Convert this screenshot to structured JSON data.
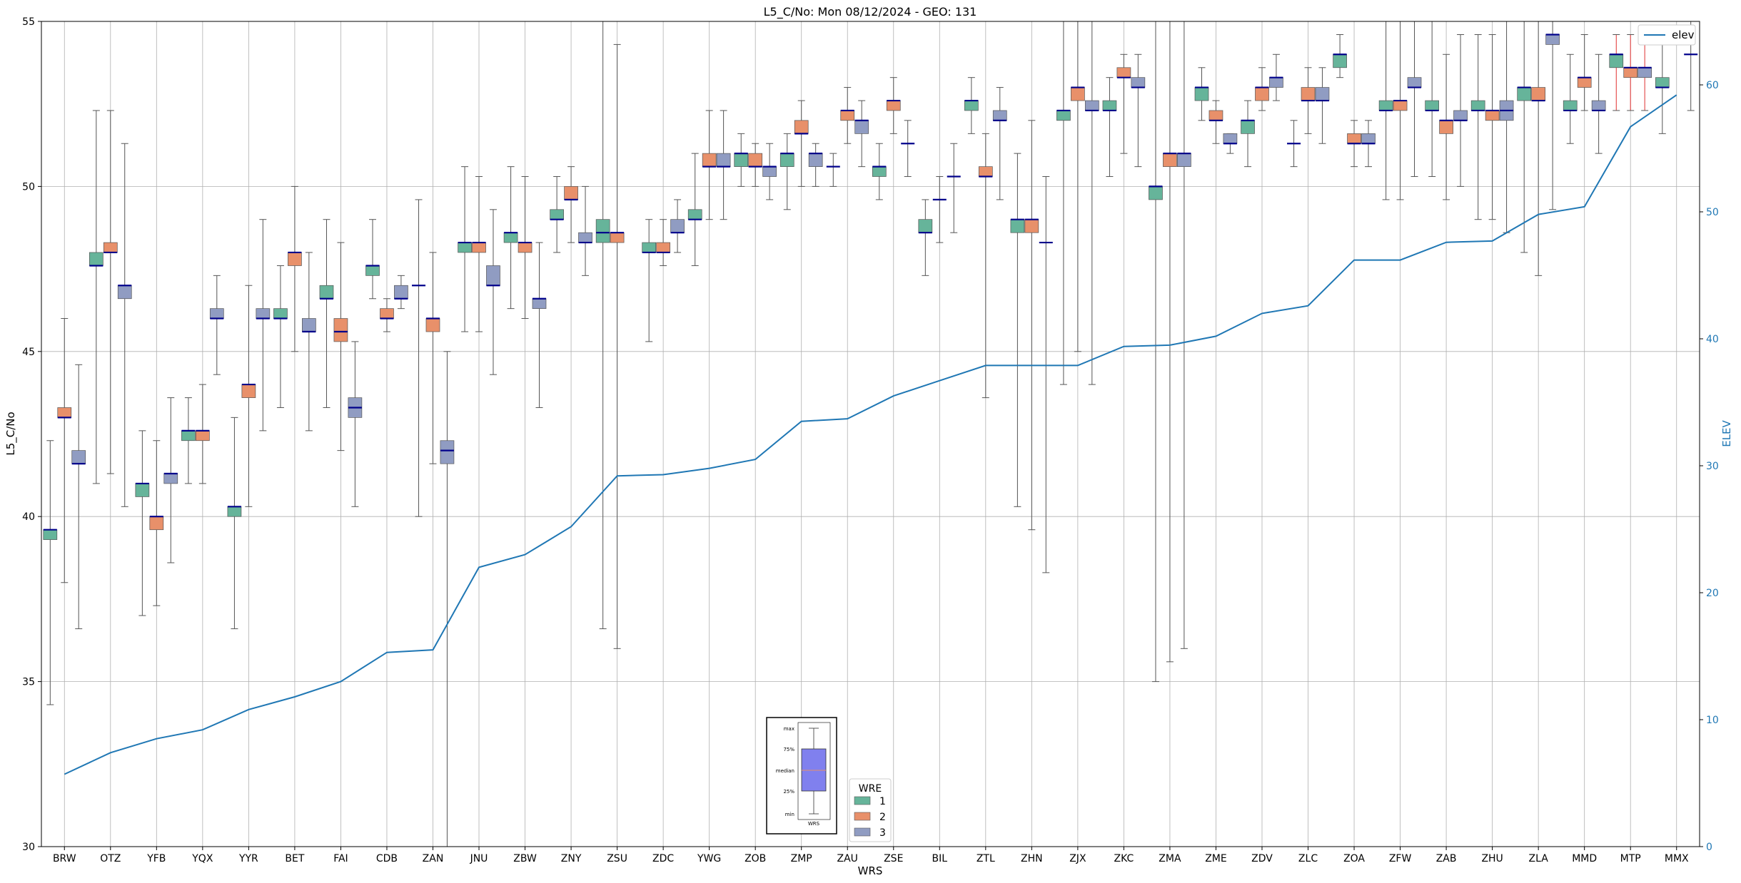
{
  "chart_data": {
    "type": "box",
    "title": "L5_C/No: Mon 08/12/2024 - GEO: 131",
    "xlabel": "WRS",
    "ylabel": "L5_C/No",
    "y2label": "ELEV",
    "ylim": [
      30,
      55
    ],
    "y2lim": [
      0,
      65
    ],
    "yticks": [
      30,
      35,
      40,
      45,
      50,
      55
    ],
    "y2ticks": [
      0,
      10,
      20,
      30,
      40,
      50,
      60
    ],
    "grid": true,
    "wre_legend": {
      "title": "WRE",
      "entries": [
        {
          "label": "1",
          "color": "#66b49a"
        },
        {
          "label": "2",
          "color": "#e8906a"
        },
        {
          "label": "3",
          "color": "#909cc2"
        }
      ],
      "placement": "bottom-center"
    },
    "line_legend": {
      "label": "elev",
      "color": "#1f77b4",
      "placement": "top-right"
    },
    "box_key": {
      "labels": [
        "max",
        "75%",
        "median",
        "25%",
        "min"
      ],
      "xlabel": "WRS"
    },
    "categories": [
      "BRW",
      "OTZ",
      "YFB",
      "YQX",
      "YYR",
      "BET",
      "FAI",
      "CDB",
      "ZAN",
      "JNU",
      "ZBW",
      "ZNY",
      "ZSU",
      "ZDC",
      "YWG",
      "ZOB",
      "ZMP",
      "ZAU",
      "ZSE",
      "BIL",
      "ZTL",
      "ZHN",
      "ZJX",
      "ZKC",
      "ZMA",
      "ZME",
      "ZDV",
      "ZLC",
      "ZOA",
      "ZFW",
      "ZAB",
      "ZHU",
      "ZLA",
      "MMD",
      "MTP",
      "MMX"
    ],
    "elev": [
      5.7,
      7.4,
      8.5,
      9.2,
      10.8,
      11.8,
      13.0,
      15.3,
      15.5,
      22.0,
      23.0,
      25.2,
      29.2,
      29.3,
      29.8,
      30.5,
      33.5,
      33.7,
      35.5,
      36.7,
      37.9,
      37.9,
      37.9,
      39.4,
      39.5,
      40.2,
      42.0,
      42.6,
      46.2,
      46.2,
      47.6,
      47.7,
      49.8,
      50.4,
      56.7,
      59.2
    ],
    "boxes": [
      {
        "wrs": "BRW",
        "wre": 1,
        "min": 34.3,
        "q1": 39.3,
        "median": 39.6,
        "q3": 39.6,
        "max": 42.3
      },
      {
        "wrs": "BRW",
        "wre": 2,
        "min": 38.0,
        "q1": 43.0,
        "median": 43.0,
        "q3": 43.3,
        "max": 46.0
      },
      {
        "wrs": "BRW",
        "wre": 3,
        "min": 36.6,
        "q1": 41.6,
        "median": 41.6,
        "q3": 42.0,
        "max": 44.6
      },
      {
        "wrs": "OTZ",
        "wre": 1,
        "min": 41.0,
        "q1": 47.6,
        "median": 47.6,
        "q3": 48.0,
        "max": 52.3
      },
      {
        "wrs": "OTZ",
        "wre": 2,
        "min": 41.3,
        "q1": 48.0,
        "median": 48.0,
        "q3": 48.3,
        "max": 52.3
      },
      {
        "wrs": "OTZ",
        "wre": 3,
        "min": 40.3,
        "q1": 46.6,
        "median": 47.0,
        "q3": 47.0,
        "max": 51.3
      },
      {
        "wrs": "YFB",
        "wre": 1,
        "min": 37.0,
        "q1": 40.6,
        "median": 41.0,
        "q3": 41.0,
        "max": 42.6
      },
      {
        "wrs": "YFB",
        "wre": 2,
        "min": 37.3,
        "q1": 39.6,
        "median": 40.0,
        "q3": 40.0,
        "max": 42.3
      },
      {
        "wrs": "YFB",
        "wre": 3,
        "min": 38.6,
        "q1": 41.0,
        "median": 41.3,
        "q3": 41.3,
        "max": 43.6
      },
      {
        "wrs": "YQX",
        "wre": 1,
        "min": 41.0,
        "q1": 42.3,
        "median": 42.6,
        "q3": 42.6,
        "max": 43.6
      },
      {
        "wrs": "YQX",
        "wre": 2,
        "min": 41.0,
        "q1": 42.3,
        "median": 42.6,
        "q3": 42.6,
        "max": 44.0
      },
      {
        "wrs": "YQX",
        "wre": 3,
        "min": 44.3,
        "q1": 46.0,
        "median": 46.0,
        "q3": 46.3,
        "max": 47.3
      },
      {
        "wrs": "YYR",
        "wre": 1,
        "min": 36.6,
        "q1": 40.0,
        "median": 40.3,
        "q3": 40.3,
        "max": 43.0
      },
      {
        "wrs": "YYR",
        "wre": 2,
        "min": 40.3,
        "q1": 43.6,
        "median": 44.0,
        "q3": 44.0,
        "max": 47.0
      },
      {
        "wrs": "YYR",
        "wre": 3,
        "min": 42.6,
        "q1": 46.0,
        "median": 46.0,
        "q3": 46.3,
        "max": 49.0
      },
      {
        "wrs": "BET",
        "wre": 1,
        "min": 43.3,
        "q1": 46.0,
        "median": 46.0,
        "q3": 46.3,
        "max": 47.6
      },
      {
        "wrs": "BET",
        "wre": 2,
        "min": 45.0,
        "q1": 47.6,
        "median": 48.0,
        "q3": 48.0,
        "max": 50.0
      },
      {
        "wrs": "BET",
        "wre": 3,
        "min": 42.6,
        "q1": 45.6,
        "median": 45.6,
        "q3": 46.0,
        "max": 48.0
      },
      {
        "wrs": "FAI",
        "wre": 1,
        "min": 43.3,
        "q1": 46.6,
        "median": 46.6,
        "q3": 47.0,
        "max": 49.0
      },
      {
        "wrs": "FAI",
        "wre": 2,
        "min": 42.0,
        "q1": 45.3,
        "median": 45.6,
        "q3": 46.0,
        "max": 48.3
      },
      {
        "wrs": "FAI",
        "wre": 3,
        "min": 40.3,
        "q1": 43.0,
        "median": 43.3,
        "q3": 43.6,
        "max": 45.3
      },
      {
        "wrs": "CDB",
        "wre": 1,
        "min": 46.6,
        "q1": 47.3,
        "median": 47.6,
        "q3": 47.6,
        "max": 49.0
      },
      {
        "wrs": "CDB",
        "wre": 2,
        "min": 45.6,
        "q1": 46.0,
        "median": 46.0,
        "q3": 46.3,
        "max": 46.6
      },
      {
        "wrs": "CDB",
        "wre": 3,
        "min": 46.3,
        "q1": 46.6,
        "median": 46.6,
        "q3": 47.0,
        "max": 47.3
      },
      {
        "wrs": "ZAN",
        "wre": 1,
        "min": 40.0,
        "q1": 47.0,
        "median": 47.0,
        "q3": 47.0,
        "max": 49.6
      },
      {
        "wrs": "ZAN",
        "wre": 2,
        "min": 41.6,
        "q1": 45.6,
        "median": 46.0,
        "q3": 46.0,
        "max": 48.0
      },
      {
        "wrs": "ZAN",
        "wre": 3,
        "min": 30.0,
        "q1": 41.6,
        "median": 42.0,
        "q3": 42.3,
        "max": 45.0
      },
      {
        "wrs": "JNU",
        "wre": 1,
        "min": 45.6,
        "q1": 48.0,
        "median": 48.3,
        "q3": 48.3,
        "max": 50.6
      },
      {
        "wrs": "JNU",
        "wre": 2,
        "min": 45.6,
        "q1": 48.0,
        "median": 48.3,
        "q3": 48.3,
        "max": 50.3
      },
      {
        "wrs": "JNU",
        "wre": 3,
        "min": 44.3,
        "q1": 47.0,
        "median": 47.0,
        "q3": 47.6,
        "max": 49.3
      },
      {
        "wrs": "ZBW",
        "wre": 1,
        "min": 46.3,
        "q1": 48.3,
        "median": 48.6,
        "q3": 48.6,
        "max": 50.6
      },
      {
        "wrs": "ZBW",
        "wre": 2,
        "min": 46.0,
        "q1": 48.0,
        "median": 48.3,
        "q3": 48.3,
        "max": 50.3
      },
      {
        "wrs": "ZBW",
        "wre": 3,
        "min": 43.3,
        "q1": 46.3,
        "median": 46.6,
        "q3": 46.6,
        "max": 48.3
      },
      {
        "wrs": "ZNY",
        "wre": 1,
        "min": 48.0,
        "q1": 49.0,
        "median": 49.0,
        "q3": 49.3,
        "max": 50.3
      },
      {
        "wrs": "ZNY",
        "wre": 2,
        "min": 48.3,
        "q1": 49.6,
        "median": 49.6,
        "q3": 50.0,
        "max": 50.6
      },
      {
        "wrs": "ZNY",
        "wre": 3,
        "min": 47.3,
        "q1": 48.3,
        "median": 48.3,
        "q3": 48.6,
        "max": 50.0
      },
      {
        "wrs": "ZSU",
        "wre": 1,
        "min": 36.6,
        "q1": 48.3,
        "median": 48.6,
        "q3": 49.0,
        "max": 55.0
      },
      {
        "wrs": "ZSU",
        "wre": 2,
        "min": 36.0,
        "q1": 48.3,
        "median": 48.6,
        "q3": 48.6,
        "max": 54.3
      },
      {
        "wrs": "ZDC",
        "wre": 1,
        "min": 45.3,
        "q1": 48.0,
        "median": 48.0,
        "q3": 48.3,
        "max": 49.0
      },
      {
        "wrs": "ZDC",
        "wre": 2,
        "min": 47.6,
        "q1": 48.0,
        "median": 48.0,
        "q3": 48.3,
        "max": 49.0
      },
      {
        "wrs": "ZDC",
        "wre": 3,
        "min": 48.0,
        "q1": 48.6,
        "median": 48.6,
        "q3": 49.0,
        "max": 49.6
      },
      {
        "wrs": "YWG",
        "wre": 1,
        "min": 47.6,
        "q1": 49.0,
        "median": 49.0,
        "q3": 49.3,
        "max": 51.0
      },
      {
        "wrs": "YWG",
        "wre": 2,
        "min": 49.0,
        "q1": 50.6,
        "median": 50.6,
        "q3": 51.0,
        "max": 52.3
      },
      {
        "wrs": "YWG",
        "wre": 3,
        "min": 49.0,
        "q1": 50.6,
        "median": 50.6,
        "q3": 51.0,
        "max": 52.3
      },
      {
        "wrs": "ZOB",
        "wre": 1,
        "min": 50.0,
        "q1": 50.6,
        "median": 51.0,
        "q3": 51.0,
        "max": 51.6
      },
      {
        "wrs": "ZOB",
        "wre": 2,
        "min": 50.0,
        "q1": 50.6,
        "median": 50.6,
        "q3": 51.0,
        "max": 51.3
      },
      {
        "wrs": "ZOB",
        "wre": 3,
        "min": 49.6,
        "q1": 50.3,
        "median": 50.6,
        "q3": 50.6,
        "max": 51.3
      },
      {
        "wrs": "ZMP",
        "wre": 1,
        "min": 49.3,
        "q1": 50.6,
        "median": 51.0,
        "q3": 51.0,
        "max": 51.6
      },
      {
        "wrs": "ZMP",
        "wre": 2,
        "min": 50.0,
        "q1": 51.6,
        "median": 51.6,
        "q3": 52.0,
        "max": 52.6
      },
      {
        "wrs": "ZMP",
        "wre": 3,
        "min": 50.0,
        "q1": 50.6,
        "median": 51.0,
        "q3": 51.0,
        "max": 51.3
      },
      {
        "wrs": "ZAU",
        "wre": 1,
        "min": 50.0,
        "q1": 50.6,
        "median": 50.6,
        "q3": 50.6,
        "max": 51.0
      },
      {
        "wrs": "ZAU",
        "wre": 2,
        "min": 51.3,
        "q1": 52.0,
        "median": 52.3,
        "q3": 52.3,
        "max": 53.0
      },
      {
        "wrs": "ZAU",
        "wre": 3,
        "min": 50.6,
        "q1": 51.6,
        "median": 52.0,
        "q3": 52.0,
        "max": 52.6
      },
      {
        "wrs": "ZSE",
        "wre": 1,
        "min": 49.6,
        "q1": 50.3,
        "median": 50.6,
        "q3": 50.6,
        "max": 51.3
      },
      {
        "wrs": "ZSE",
        "wre": 2,
        "min": 51.6,
        "q1": 52.3,
        "median": 52.6,
        "q3": 52.6,
        "max": 53.3
      },
      {
        "wrs": "ZSE",
        "wre": 3,
        "min": 50.3,
        "q1": 51.3,
        "median": 51.3,
        "q3": 51.3,
        "max": 52.0
      },
      {
        "wrs": "BIL",
        "wre": 1,
        "min": 47.3,
        "q1": 48.6,
        "median": 48.6,
        "q3": 49.0,
        "max": 49.6
      },
      {
        "wrs": "BIL",
        "wre": 2,
        "min": 48.3,
        "q1": 49.6,
        "median": 49.6,
        "q3": 49.6,
        "max": 50.3
      },
      {
        "wrs": "BIL",
        "wre": 3,
        "min": 48.6,
        "q1": 50.3,
        "median": 50.3,
        "q3": 50.3,
        "max": 51.3
      },
      {
        "wrs": "ZTL",
        "wre": 1,
        "min": 51.6,
        "q1": 52.3,
        "median": 52.6,
        "q3": 52.6,
        "max": 53.3
      },
      {
        "wrs": "ZTL",
        "wre": 2,
        "min": 43.6,
        "q1": 50.3,
        "median": 50.3,
        "q3": 50.6,
        "max": 51.6
      },
      {
        "wrs": "ZTL",
        "wre": 3,
        "min": 49.6,
        "q1": 52.0,
        "median": 52.0,
        "q3": 52.3,
        "max": 53.0
      },
      {
        "wrs": "ZHN",
        "wre": 1,
        "min": 40.3,
        "q1": 48.6,
        "median": 49.0,
        "q3": 49.0,
        "max": 51.0
      },
      {
        "wrs": "ZHN",
        "wre": 2,
        "min": 39.6,
        "q1": 48.6,
        "median": 49.0,
        "q3": 49.0,
        "max": 52.0
      },
      {
        "wrs": "ZHN",
        "wre": 3,
        "min": 38.3,
        "q1": 48.3,
        "median": 48.3,
        "q3": 48.3,
        "max": 50.3
      },
      {
        "wrs": "ZJX",
        "wre": 1,
        "min": 44.0,
        "q1": 52.0,
        "median": 52.3,
        "q3": 52.3,
        "max": 55.0
      },
      {
        "wrs": "ZJX",
        "wre": 2,
        "min": 45.0,
        "q1": 52.6,
        "median": 53.0,
        "q3": 53.0,
        "max": 55.0
      },
      {
        "wrs": "ZJX",
        "wre": 3,
        "min": 44.0,
        "q1": 52.3,
        "median": 52.3,
        "q3": 52.6,
        "max": 55.0
      },
      {
        "wrs": "ZKC",
        "wre": 1,
        "min": 50.3,
        "q1": 52.3,
        "median": 52.3,
        "q3": 52.6,
        "max": 53.3
      },
      {
        "wrs": "ZKC",
        "wre": 2,
        "min": 51.0,
        "q1": 53.3,
        "median": 53.3,
        "q3": 53.6,
        "max": 54.0
      },
      {
        "wrs": "ZKC",
        "wre": 3,
        "min": 50.6,
        "q1": 53.0,
        "median": 53.0,
        "q3": 53.3,
        "max": 54.0
      },
      {
        "wrs": "ZMA",
        "wre": 1,
        "min": 35.0,
        "q1": 49.6,
        "median": 50.0,
        "q3": 50.0,
        "max": 55.0
      },
      {
        "wrs": "ZMA",
        "wre": 2,
        "min": 35.6,
        "q1": 50.6,
        "median": 51.0,
        "q3": 51.0,
        "max": 55.0
      },
      {
        "wrs": "ZMA",
        "wre": 3,
        "min": 36.0,
        "q1": 50.6,
        "median": 51.0,
        "q3": 51.0,
        "max": 55.0
      },
      {
        "wrs": "ZME",
        "wre": 1,
        "min": 52.0,
        "q1": 52.6,
        "median": 53.0,
        "q3": 53.0,
        "max": 53.6
      },
      {
        "wrs": "ZME",
        "wre": 2,
        "min": 51.3,
        "q1": 52.0,
        "median": 52.0,
        "q3": 52.3,
        "max": 52.6
      },
      {
        "wrs": "ZME",
        "wre": 3,
        "min": 51.0,
        "q1": 51.3,
        "median": 51.3,
        "q3": 51.6,
        "max": 51.6
      },
      {
        "wrs": "ZDV",
        "wre": 1,
        "min": 50.6,
        "q1": 51.6,
        "median": 52.0,
        "q3": 52.0,
        "max": 52.6
      },
      {
        "wrs": "ZDV",
        "wre": 2,
        "min": 52.3,
        "q1": 52.6,
        "median": 53.0,
        "q3": 53.0,
        "max": 53.6
      },
      {
        "wrs": "ZDV",
        "wre": 3,
        "min": 52.6,
        "q1": 53.0,
        "median": 53.3,
        "q3": 53.3,
        "max": 54.0
      },
      {
        "wrs": "ZLC",
        "wre": 1,
        "min": 50.6,
        "q1": 51.3,
        "median": 51.3,
        "q3": 51.3,
        "max": 52.0
      },
      {
        "wrs": "ZLC",
        "wre": 2,
        "min": 51.6,
        "q1": 52.6,
        "median": 52.6,
        "q3": 53.0,
        "max": 53.6
      },
      {
        "wrs": "ZLC",
        "wre": 3,
        "min": 51.3,
        "q1": 52.6,
        "median": 52.6,
        "q3": 53.0,
        "max": 53.6
      },
      {
        "wrs": "ZOA",
        "wre": 1,
        "min": 53.3,
        "q1": 53.6,
        "median": 54.0,
        "q3": 54.0,
        "max": 54.6
      },
      {
        "wrs": "ZOA",
        "wre": 2,
        "min": 50.6,
        "q1": 51.3,
        "median": 51.3,
        "q3": 51.6,
        "max": 52.0
      },
      {
        "wrs": "ZOA",
        "wre": 3,
        "min": 50.6,
        "q1": 51.3,
        "median": 51.3,
        "q3": 51.6,
        "max": 52.0
      },
      {
        "wrs": "ZFW",
        "wre": 1,
        "min": 49.6,
        "q1": 52.3,
        "median": 52.3,
        "q3": 52.6,
        "max": 55.0
      },
      {
        "wrs": "ZFW",
        "wre": 2,
        "min": 49.6,
        "q1": 52.3,
        "median": 52.6,
        "q3": 52.6,
        "max": 55.0
      },
      {
        "wrs": "ZFW",
        "wre": 3,
        "min": 50.3,
        "q1": 53.0,
        "median": 53.0,
        "q3": 53.3,
        "max": 55.0
      },
      {
        "wrs": "ZAB",
        "wre": 1,
        "min": 50.3,
        "q1": 52.3,
        "median": 52.3,
        "q3": 52.6,
        "max": 55.0
      },
      {
        "wrs": "ZAB",
        "wre": 2,
        "min": 49.6,
        "q1": 51.6,
        "median": 52.0,
        "q3": 52.0,
        "max": 54.0
      },
      {
        "wrs": "ZAB",
        "wre": 3,
        "min": 50.0,
        "q1": 52.0,
        "median": 52.0,
        "q3": 52.3,
        "max": 54.6
      },
      {
        "wrs": "ZHU",
        "wre": 1,
        "min": 49.0,
        "q1": 52.3,
        "median": 52.3,
        "q3": 52.6,
        "max": 54.6
      },
      {
        "wrs": "ZHU",
        "wre": 2,
        "min": 49.0,
        "q1": 52.0,
        "median": 52.3,
        "q3": 52.3,
        "max": 54.6
      },
      {
        "wrs": "ZHU",
        "wre": 3,
        "min": 48.6,
        "q1": 52.0,
        "median": 52.3,
        "q3": 52.6,
        "max": 55.0
      },
      {
        "wrs": "ZLA",
        "wre": 1,
        "min": 48.0,
        "q1": 52.6,
        "median": 53.0,
        "q3": 53.0,
        "max": 55.0
      },
      {
        "wrs": "ZLA",
        "wre": 2,
        "min": 47.3,
        "q1": 52.6,
        "median": 52.6,
        "q3": 53.0,
        "max": 55.0
      },
      {
        "wrs": "ZLA",
        "wre": 3,
        "min": 49.3,
        "q1": 54.3,
        "median": 54.6,
        "q3": 54.6,
        "max": 55.0
      },
      {
        "wrs": "MMD",
        "wre": 1,
        "min": 51.3,
        "q1": 52.3,
        "median": 52.3,
        "q3": 52.6,
        "max": 54.0
      },
      {
        "wrs": "MMD",
        "wre": 2,
        "min": 52.3,
        "q1": 53.0,
        "median": 53.3,
        "q3": 53.3,
        "max": 54.6
      },
      {
        "wrs": "MMD",
        "wre": 3,
        "min": 51.0,
        "q1": 52.3,
        "median": 52.3,
        "q3": 52.6,
        "max": 54.0
      },
      {
        "wrs": "MTP",
        "wre": 1,
        "min": 52.3,
        "q1": 53.6,
        "median": 54.0,
        "q3": 54.0,
        "max": 54.6,
        "outlier": true
      },
      {
        "wrs": "MTP",
        "wre": 2,
        "min": 52.3,
        "q1": 53.3,
        "median": 53.6,
        "q3": 53.6,
        "max": 54.6,
        "outlier": true
      },
      {
        "wrs": "MTP",
        "wre": 3,
        "min": 52.3,
        "q1": 53.3,
        "median": 53.6,
        "q3": 53.6,
        "max": 54.3,
        "outlier": true
      },
      {
        "wrs": "MMX",
        "wre": 1,
        "min": 51.6,
        "q1": 53.0,
        "median": 53.0,
        "q3": 53.3,
        "max": 54.3
      },
      {
        "wrs": "MMX",
        "wre": 3,
        "min": 52.3,
        "q1": 54.0,
        "median": 54.0,
        "q3": 54.0,
        "max": 55.0
      }
    ]
  }
}
